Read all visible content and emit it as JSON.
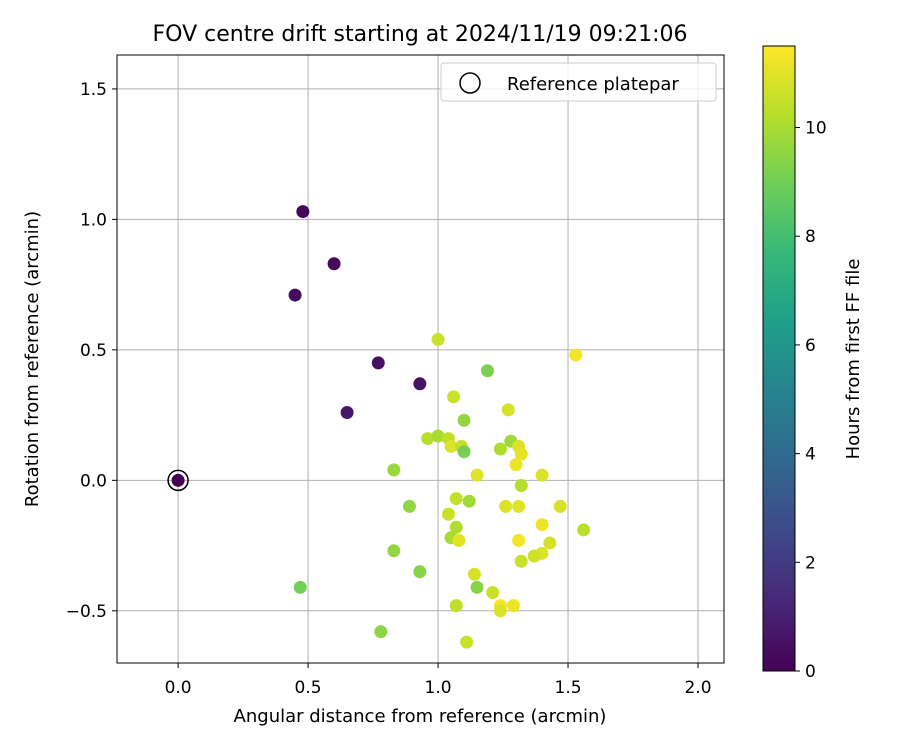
{
  "chart_data": {
    "type": "scatter",
    "title": "FOV centre drift starting at 2024/11/19 09:21:06",
    "xlabel": "Angular distance from reference (arcmin)",
    "ylabel": "Rotation from reference (arcmin)",
    "xlim": [
      -0.235,
      2.1
    ],
    "ylim": [
      -0.7,
      1.63
    ],
    "xticks": [
      0.0,
      0.5,
      1.0,
      1.5,
      2.0
    ],
    "xtick_labels": [
      "0.0",
      "0.5",
      "1.0",
      "1.5",
      "2.0"
    ],
    "yticks": [
      -0.5,
      0.0,
      0.5,
      1.0,
      1.5
    ],
    "ytick_labels": [
      "−0.5",
      "0.0",
      "0.5",
      "1.0",
      "1.5"
    ],
    "grid": true,
    "legend": {
      "placement": "top-right",
      "entries": [
        "Reference platepar"
      ]
    },
    "colorbar": {
      "label": "Hours from first FF file",
      "colormap": "viridis",
      "range": [
        0,
        11.5
      ],
      "ticks": [
        0,
        2,
        4,
        6,
        8,
        10
      ],
      "tick_labels": [
        "0",
        "2",
        "4",
        "6",
        "8",
        "10"
      ],
      "stops": [
        "#440154",
        "#482878",
        "#3e4989",
        "#31688e",
        "#26828e",
        "#1f9e89",
        "#35b779",
        "#6ece58",
        "#b5de2b",
        "#fde725"
      ]
    },
    "reference_point": {
      "x": 0.0,
      "y": 0.0,
      "hours": 0.0
    },
    "points": [
      {
        "x": 0.48,
        "y": 1.03,
        "hours": 0.2
      },
      {
        "x": 0.6,
        "y": 0.83,
        "hours": 0.3
      },
      {
        "x": 0.45,
        "y": 0.71,
        "hours": 0.4
      },
      {
        "x": 0.77,
        "y": 0.45,
        "hours": 0.5
      },
      {
        "x": 0.93,
        "y": 0.37,
        "hours": 0.6
      },
      {
        "x": 0.65,
        "y": 0.26,
        "hours": 0.7
      },
      {
        "x": 1.0,
        "y": 0.54,
        "hours": 10.6
      },
      {
        "x": 1.19,
        "y": 0.42,
        "hours": 9.2
      },
      {
        "x": 1.06,
        "y": 0.32,
        "hours": 10.6
      },
      {
        "x": 1.1,
        "y": 0.23,
        "hours": 9.6
      },
      {
        "x": 1.27,
        "y": 0.27,
        "hours": 10.8
      },
      {
        "x": 1.53,
        "y": 0.48,
        "hours": 11.3
      },
      {
        "x": 0.96,
        "y": 0.16,
        "hours": 10.3
      },
      {
        "x": 1.0,
        "y": 0.17,
        "hours": 10.0
      },
      {
        "x": 1.04,
        "y": 0.16,
        "hours": 10.4
      },
      {
        "x": 1.05,
        "y": 0.13,
        "hours": 10.9
      },
      {
        "x": 1.09,
        "y": 0.13,
        "hours": 10.5
      },
      {
        "x": 1.1,
        "y": 0.11,
        "hours": 9.1
      },
      {
        "x": 1.24,
        "y": 0.12,
        "hours": 10.1
      },
      {
        "x": 1.28,
        "y": 0.15,
        "hours": 9.8
      },
      {
        "x": 1.31,
        "y": 0.13,
        "hours": 10.9
      },
      {
        "x": 1.32,
        "y": 0.1,
        "hours": 11.1
      },
      {
        "x": 1.3,
        "y": 0.06,
        "hours": 11.2
      },
      {
        "x": 1.15,
        "y": 0.02,
        "hours": 11.0
      },
      {
        "x": 1.4,
        "y": 0.02,
        "hours": 10.9
      },
      {
        "x": 0.83,
        "y": 0.04,
        "hours": 9.7
      },
      {
        "x": 1.32,
        "y": -0.02,
        "hours": 10.2
      },
      {
        "x": 1.07,
        "y": -0.07,
        "hours": 10.5
      },
      {
        "x": 1.12,
        "y": -0.08,
        "hours": 9.9
      },
      {
        "x": 0.89,
        "y": -0.1,
        "hours": 9.6
      },
      {
        "x": 1.26,
        "y": -0.1,
        "hours": 10.9
      },
      {
        "x": 1.31,
        "y": -0.1,
        "hours": 11.0
      },
      {
        "x": 1.47,
        "y": -0.1,
        "hours": 10.8
      },
      {
        "x": 1.04,
        "y": -0.13,
        "hours": 10.6
      },
      {
        "x": 1.07,
        "y": -0.18,
        "hours": 10.1
      },
      {
        "x": 1.4,
        "y": -0.17,
        "hours": 11.2
      },
      {
        "x": 1.56,
        "y": -0.19,
        "hours": 10.3
      },
      {
        "x": 1.05,
        "y": -0.22,
        "hours": 10.0
      },
      {
        "x": 1.08,
        "y": -0.23,
        "hours": 11.0
      },
      {
        "x": 1.31,
        "y": -0.23,
        "hours": 11.3
      },
      {
        "x": 1.43,
        "y": -0.24,
        "hours": 10.8
      },
      {
        "x": 1.4,
        "y": -0.28,
        "hours": 10.9
      },
      {
        "x": 1.37,
        "y": -0.29,
        "hours": 10.7
      },
      {
        "x": 0.83,
        "y": -0.27,
        "hours": 9.6
      },
      {
        "x": 1.32,
        "y": -0.31,
        "hours": 10.6
      },
      {
        "x": 0.93,
        "y": -0.35,
        "hours": 9.4
      },
      {
        "x": 1.14,
        "y": -0.36,
        "hours": 10.8
      },
      {
        "x": 1.15,
        "y": -0.41,
        "hours": 9.4
      },
      {
        "x": 0.47,
        "y": -0.41,
        "hours": 9.0
      },
      {
        "x": 1.21,
        "y": -0.43,
        "hours": 10.6
      },
      {
        "x": 1.07,
        "y": -0.48,
        "hours": 10.4
      },
      {
        "x": 1.24,
        "y": -0.48,
        "hours": 11.4
      },
      {
        "x": 1.29,
        "y": -0.48,
        "hours": 11.2
      },
      {
        "x": 1.24,
        "y": -0.5,
        "hours": 10.9
      },
      {
        "x": 0.78,
        "y": -0.58,
        "hours": 9.5
      },
      {
        "x": 1.11,
        "y": -0.62,
        "hours": 10.6
      }
    ]
  }
}
